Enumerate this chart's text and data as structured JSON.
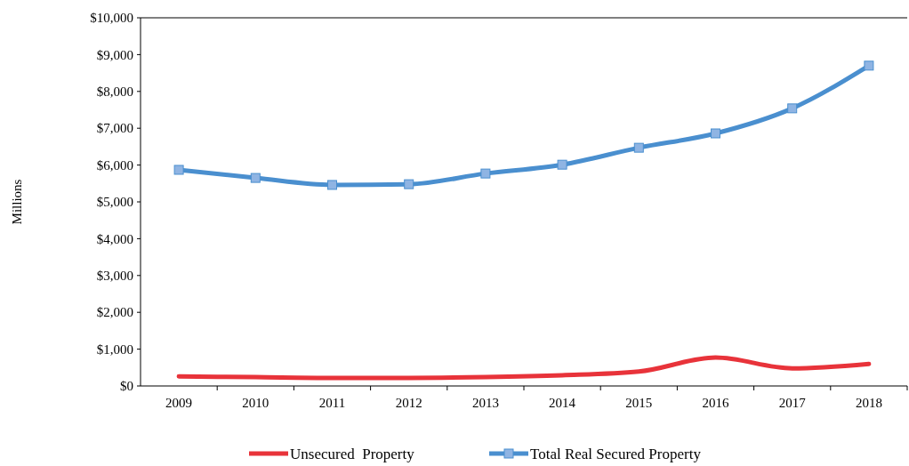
{
  "chart_data": {
    "type": "line",
    "ylabel": "Millions",
    "categories": [
      "2009",
      "2010",
      "2011",
      "2012",
      "2013",
      "2014",
      "2015",
      "2016",
      "2017",
      "2018"
    ],
    "series": [
      {
        "name": "Unsecured  Property",
        "color": "#e8333a",
        "marker": "none",
        "values": [
          260,
          240,
          220,
          220,
          240,
          290,
          390,
          770,
          480,
          600
        ]
      },
      {
        "name": "Total Real Secured Property",
        "color": "#4a8fcf",
        "marker": "square",
        "values": [
          5870,
          5650,
          5460,
          5480,
          5770,
          6010,
          6470,
          6860,
          7540,
          8700
        ]
      }
    ],
    "ylim": [
      0,
      10000
    ],
    "yticks": [
      {
        "value": 0,
        "label": "$0"
      },
      {
        "value": 1000,
        "label": "$1,000"
      },
      {
        "value": 2000,
        "label": "$2,000"
      },
      {
        "value": 3000,
        "label": "$3,000"
      },
      {
        "value": 4000,
        "label": "$4,000"
      },
      {
        "value": 5000,
        "label": "$5,000"
      },
      {
        "value": 6000,
        "label": "$6,000"
      },
      {
        "value": 7000,
        "label": "$7,000"
      },
      {
        "value": 8000,
        "label": "$8,000"
      },
      {
        "value": 9000,
        "label": "$9,000"
      },
      {
        "value": 10000,
        "label": "$10,000"
      }
    ],
    "grid": false,
    "legend": "bottom"
  }
}
